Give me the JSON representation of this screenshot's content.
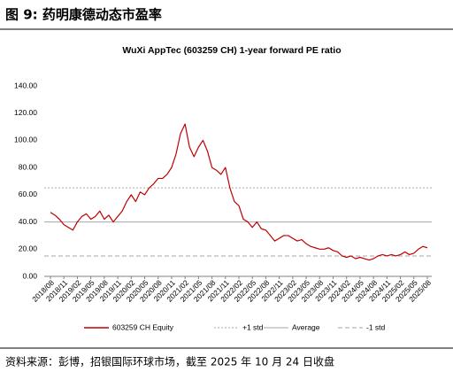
{
  "header": {
    "title": "图 9: 药明康德动态市盈率"
  },
  "chart_data": {
    "type": "line",
    "title": "WuXi AppTec (603259 CH)  1-year forward PE ratio",
    "x": [
      "2018/08",
      null,
      null,
      "2018/11",
      null,
      null,
      "2019/02",
      null,
      null,
      "2019/05",
      null,
      null,
      "2019/08",
      null,
      null,
      "2019/11",
      null,
      null,
      "2020/02",
      null,
      null,
      "2020/05",
      null,
      null,
      "2020/08",
      null,
      null,
      "2020/11",
      null,
      null,
      "2021/02",
      null,
      null,
      "2021/05",
      null,
      null,
      "2021/08",
      null,
      null,
      "2021/11",
      null,
      null,
      "2022/02",
      null,
      null,
      "2022/05",
      null,
      null,
      "2022/08",
      null,
      null,
      "2022/11",
      null,
      null,
      "2023/02",
      null,
      null,
      "2023/05",
      null,
      null,
      "2023/08",
      null,
      null,
      "2023/11",
      null,
      null,
      "2024/02",
      null,
      null,
      "2024/05",
      null,
      null,
      "2024/08",
      null,
      null,
      "2024/11",
      null,
      null,
      "2025/02",
      null,
      null,
      "2025/05",
      null,
      null,
      "2025/08"
    ],
    "series": [
      {
        "name": "603259 CH Equity",
        "color": "#c00000",
        "values": [
          47,
          45,
          42,
          38,
          36,
          34,
          40,
          44,
          46,
          42,
          44,
          48,
          42,
          45,
          40,
          44,
          48,
          55,
          60,
          55,
          62,
          60,
          65,
          68,
          72,
          72,
          75,
          80,
          90,
          105,
          112,
          95,
          88,
          95,
          100,
          92,
          80,
          78,
          75,
          80,
          65,
          55,
          52,
          42,
          40,
          36,
          40,
          35,
          34,
          30,
          26,
          28,
          30,
          30,
          28,
          26,
          27,
          24,
          22,
          21,
          20,
          20,
          21,
          19,
          18,
          15,
          14,
          15,
          13,
          14,
          13,
          12,
          13,
          15,
          16,
          15,
          16,
          15,
          16,
          18,
          16,
          17,
          20,
          22,
          21
        ]
      }
    ],
    "reference_lines": [
      {
        "name": "+1 std",
        "value": 65,
        "color": "#a6a6a6",
        "style": "dotted"
      },
      {
        "name": "Average",
        "value": 40,
        "color": "#a6a6a6",
        "style": "solid"
      },
      {
        "name": "-1 std",
        "value": 15,
        "color": "#a6a6a6",
        "style": "dashed"
      }
    ],
    "ylim": [
      0,
      140
    ],
    "yticks": [
      {
        "value": 0,
        "label": "0.00"
      },
      {
        "value": 20,
        "label": "20.00"
      },
      {
        "value": 40,
        "label": "40.00"
      },
      {
        "value": 60,
        "label": "60.00"
      },
      {
        "value": 80,
        "label": "80.00"
      },
      {
        "value": 100,
        "label": "100.00"
      },
      {
        "value": 120,
        "label": "120.00"
      },
      {
        "value": 140,
        "label": "140.00"
      }
    ],
    "grid": false,
    "legend": "bottom"
  },
  "footer": {
    "source": "资料来源：彭博，招银国际环球市场，截至 2025 年 10 月 24 日收盘"
  }
}
